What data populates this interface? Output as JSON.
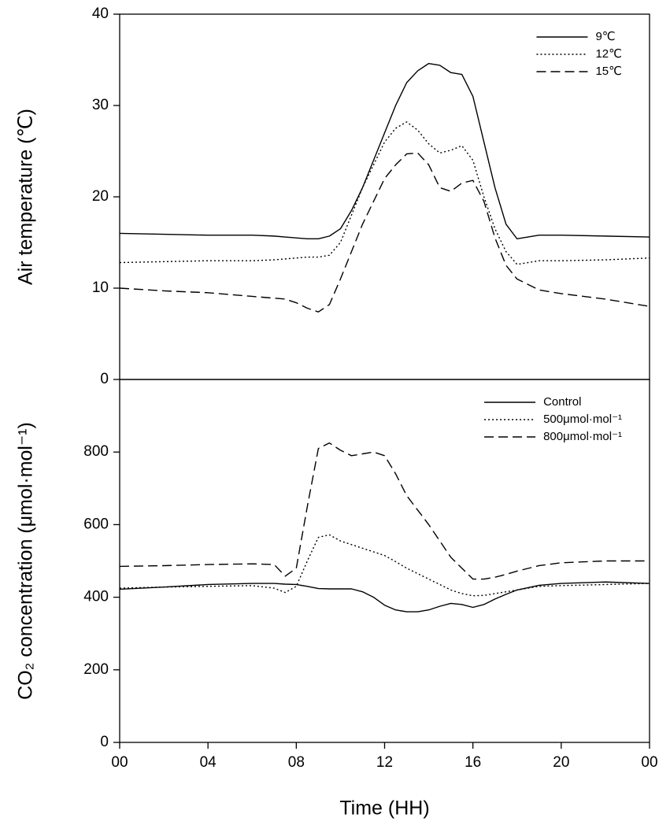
{
  "chart_data": [
    {
      "type": "line",
      "ylabel": "Air temperature (℃)",
      "legend": "upper right",
      "x": [
        0,
        2,
        4,
        6,
        7,
        7.5,
        8,
        8.5,
        9,
        9.5,
        10,
        10.5,
        11,
        11.5,
        12,
        12.5,
        13,
        13.5,
        14,
        14.5,
        15,
        15.5,
        16,
        16.5,
        17,
        17.5,
        18,
        19,
        20,
        22,
        24
      ],
      "xlim": [
        0,
        24
      ],
      "ylim": [
        0,
        40
      ],
      "yticks": [
        0,
        10,
        20,
        30,
        40
      ],
      "series": [
        {
          "name": "9℃",
          "color": "#000000",
          "style": "solid",
          "values": [
            16,
            15.9,
            15.8,
            15.8,
            15.7,
            15.6,
            15.5,
            15.4,
            15.4,
            15.7,
            16.5,
            18.5,
            21,
            24,
            27,
            30,
            32.5,
            33.8,
            34.6,
            34.4,
            33.6,
            33.4,
            31,
            26,
            21,
            17,
            15.4,
            15.8,
            15.8,
            15.7,
            15.6
          ]
        },
        {
          "name": "12℃",
          "color": "#000000",
          "style": "dotted",
          "values": [
            12.8,
            12.9,
            13,
            13,
            13.1,
            13.2,
            13.3,
            13.4,
            13.4,
            13.6,
            15,
            18,
            21,
            23.5,
            26,
            27.5,
            28.2,
            27.3,
            25.8,
            24.8,
            25.1,
            25.6,
            24,
            20,
            16.5,
            14,
            12.6,
            13,
            13,
            13.1,
            13.3
          ]
        },
        {
          "name": "15℃",
          "color": "#000000",
          "style": "dashed",
          "values": [
            10,
            9.7,
            9.5,
            9.1,
            8.9,
            8.8,
            8.4,
            7.8,
            7.4,
            8.2,
            11,
            14,
            17,
            19.5,
            22,
            23.5,
            24.7,
            24.8,
            23.5,
            21,
            20.6,
            21.5,
            21.8,
            19.5,
            15.5,
            12.5,
            11,
            9.8,
            9.4,
            8.8,
            8
          ]
        }
      ]
    },
    {
      "type": "line",
      "ylabel": "CO₂ concentration (μmol·mol⁻¹)",
      "xlabel": "Time (HH)",
      "legend": "upper right",
      "x": [
        0,
        2,
        4,
        6,
        7,
        7.5,
        8,
        8.5,
        9,
        9.5,
        10,
        10.5,
        11,
        11.5,
        12,
        12.5,
        13,
        13.5,
        14,
        14.5,
        15,
        15.5,
        16,
        16.5,
        17,
        17.5,
        18,
        19,
        20,
        22,
        24
      ],
      "xlim": [
        0,
        24
      ],
      "xticks": [
        {
          "value": 0,
          "label": "00"
        },
        {
          "value": 4,
          "label": "04"
        },
        {
          "value": 8,
          "label": "08"
        },
        12,
        16,
        20,
        {
          "value": 24,
          "label": "00"
        }
      ],
      "ylim": [
        0,
        1000
      ],
      "yticks": [
        0,
        200,
        400,
        600,
        800
      ],
      "series": [
        {
          "name": "Control",
          "color": "#000000",
          "style": "solid",
          "values": [
            422,
            428,
            435,
            438,
            438,
            436,
            435,
            430,
            424,
            423,
            423,
            423,
            415,
            400,
            378,
            365,
            360,
            360,
            365,
            375,
            383,
            380,
            372,
            380,
            395,
            408,
            420,
            433,
            438,
            442,
            438
          ]
        },
        {
          "name": "500μmol·mol⁻¹",
          "color": "#000000",
          "style": "dotted",
          "values": [
            425,
            428,
            430,
            432,
            425,
            413,
            430,
            500,
            565,
            572,
            555,
            545,
            535,
            525,
            515,
            498,
            480,
            465,
            450,
            435,
            420,
            410,
            404,
            405,
            410,
            415,
            420,
            430,
            432,
            435,
            438
          ]
        },
        {
          "name": "800μmol·mol⁻¹",
          "color": "#000000",
          "style": "dashed",
          "values": [
            485,
            487,
            490,
            492,
            490,
            458,
            480,
            650,
            810,
            825,
            805,
            790,
            795,
            800,
            790,
            740,
            680,
            640,
            600,
            555,
            510,
            480,
            450,
            450,
            455,
            463,
            472,
            487,
            495,
            500,
            500
          ]
        }
      ]
    }
  ]
}
